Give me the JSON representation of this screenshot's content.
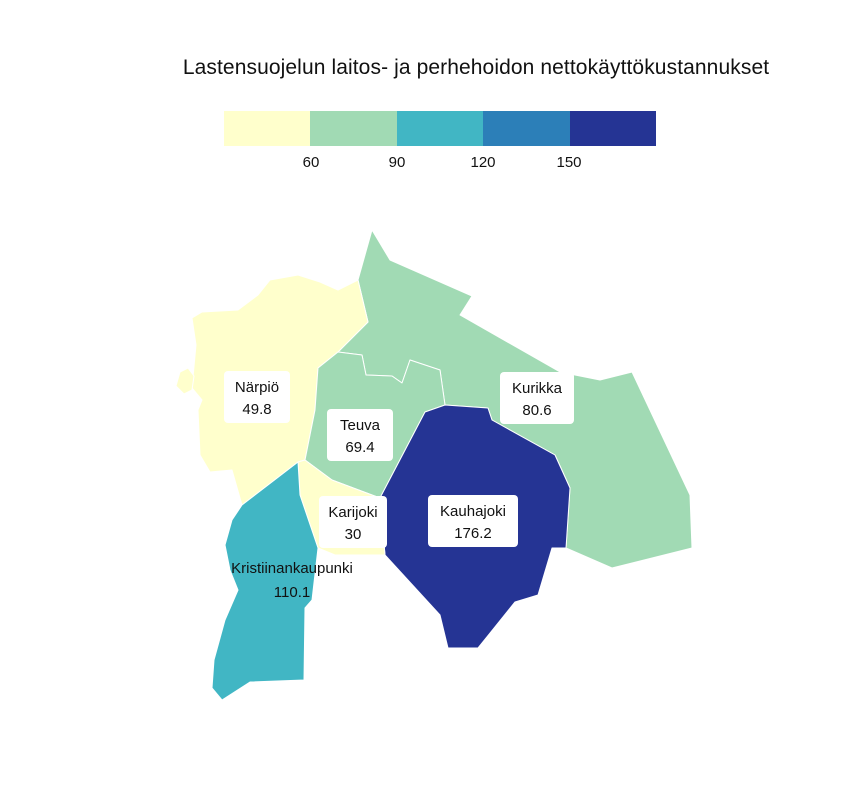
{
  "title": "Lastensuojelun laitos- ja perhehoidon nettokäyttökustannukset",
  "legend": {
    "colors": [
      "#ffffcc",
      "#a1dab4",
      "#41b6c4",
      "#2c7fb8",
      "#253494"
    ],
    "breaks": [
      "60",
      "90",
      "120",
      "150"
    ]
  },
  "regions": [
    {
      "name": "Närpiö",
      "value": "49.8",
      "color": "#ffffcc"
    },
    {
      "name": "Teuva",
      "value": "69.4",
      "color": "#a1dab4"
    },
    {
      "name": "Kurikka",
      "value": "80.6",
      "color": "#a1dab4"
    },
    {
      "name": "Kauhajoki",
      "value": "176.2",
      "color": "#253494"
    },
    {
      "name": "Karijoki",
      "value": "30",
      "color": "#ffffcc"
    },
    {
      "name": "Kristiinankaupunki",
      "value": "110.1",
      "color": "#41b6c4"
    }
  ]
}
